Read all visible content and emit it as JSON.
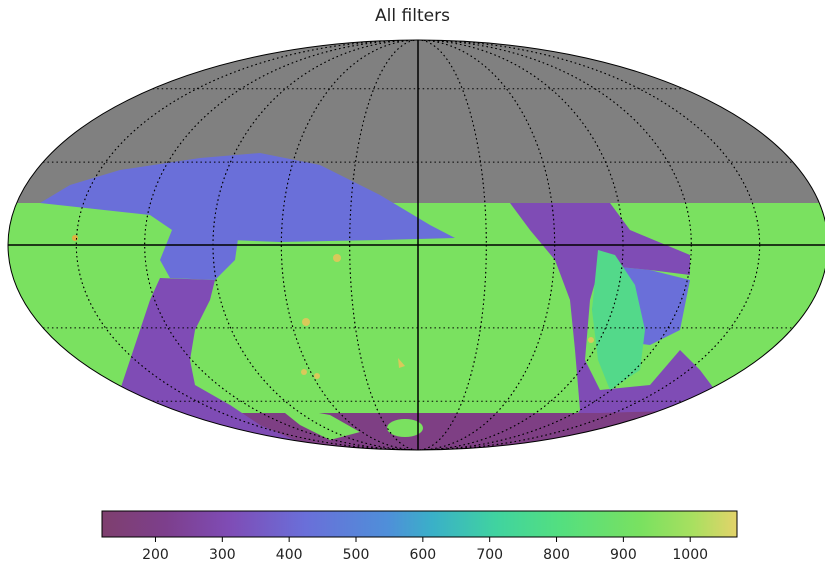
{
  "chart_data": {
    "type": "heatmap",
    "projection": "mollweide",
    "title": "All filters",
    "graticule": "dotted",
    "colormap": "viridis",
    "mask_color": "#808080",
    "colorbar": {
      "orientation": "horizontal",
      "placement": "bottom",
      "min": 120,
      "max": 1070,
      "ticks": [
        200,
        300,
        400,
        500,
        600,
        700,
        800,
        900,
        1000
      ],
      "tick_labels": [
        "200",
        "300",
        "400",
        "500",
        "600",
        "700",
        "800",
        "900",
        "1000"
      ]
    },
    "regions": [
      {
        "name": "unobserved",
        "value": null,
        "color": "#808080"
      },
      {
        "name": "main survey",
        "value": 880,
        "color": "#7ae160"
      },
      {
        "name": "northern strip",
        "value": 440,
        "color": "#6a6fd9"
      },
      {
        "name": "galactic plane",
        "value": 300,
        "color": "#7f4cb5"
      },
      {
        "name": "south pole",
        "value": 180,
        "color": "#7e3f84"
      },
      {
        "name": "deep fields",
        "value": 1000,
        "color": "#d9c95a"
      },
      {
        "name": "teal patch",
        "value": 750,
        "color": "#53d98a"
      }
    ]
  }
}
